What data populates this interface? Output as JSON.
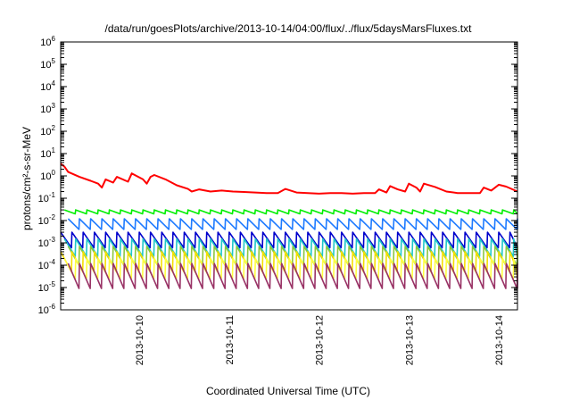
{
  "chart_data": {
    "type": "line",
    "title": "/data/run/goesPlots/archive/2013-10-14/04:00/flux/../flux/5daysMarsFluxes.txt",
    "xlabel": "Coordinated Universal Time (UTC)",
    "ylabel": "protons/cm²-s-sr-MeV",
    "y_scale": "log",
    "ylim": [
      "1e-6",
      "1e6"
    ],
    "xlim": [
      "2013-10-09T03:00",
      "2013-10-14T05:00"
    ],
    "y_tick_labels": [
      "10-6",
      "10-5",
      "10-4",
      "10-3",
      "10-2",
      "10-1",
      "100",
      "101",
      "102",
      "103",
      "104",
      "105",
      "106"
    ],
    "x_tick_labels": [
      "2013-10-10",
      "2013-10-11",
      "2013-10-12",
      "2013-10-13",
      "2013-10-14"
    ],
    "grid": false,
    "legend": "none",
    "series": [
      {
        "color": "#ff0000",
        "points": [
          [
            "2013-10-09T03:00",
            3.5
          ],
          [
            "2013-10-09T04:00",
            2.6
          ],
          [
            "2013-10-09T05:00",
            1.5
          ],
          [
            "2013-10-09T08:00",
            0.9
          ],
          [
            "2013-10-09T11:00",
            0.6
          ],
          [
            "2013-10-09T13:00",
            0.45
          ],
          [
            "2013-10-09T14:00",
            0.3
          ],
          [
            "2013-10-09T15:00",
            0.7
          ],
          [
            "2013-10-09T17:00",
            0.5
          ],
          [
            "2013-10-09T18:00",
            0.9
          ],
          [
            "2013-10-09T21:00",
            0.55
          ],
          [
            "2013-10-09T22:00",
            1.3
          ],
          [
            "2013-10-10T01:00",
            0.7
          ],
          [
            "2013-10-10T02:00",
            0.45
          ],
          [
            "2013-10-10T03:00",
            0.9
          ],
          [
            "2013-10-10T04:00",
            1.1
          ],
          [
            "2013-10-10T07:00",
            0.7
          ],
          [
            "2013-10-10T10:00",
            0.38
          ],
          [
            "2013-10-10T13:00",
            0.26
          ],
          [
            "2013-10-10T14:00",
            0.2
          ],
          [
            "2013-10-10T16:00",
            0.25
          ],
          [
            "2013-10-10T19:00",
            0.2
          ],
          [
            "2013-10-10T22:00",
            0.22
          ],
          [
            "2013-10-11T01:00",
            0.2
          ],
          [
            "2013-10-11T04:00",
            0.19
          ],
          [
            "2013-10-11T07:00",
            0.18
          ],
          [
            "2013-10-11T10:00",
            0.17
          ],
          [
            "2013-10-11T13:00",
            0.17
          ],
          [
            "2013-10-11T15:00",
            0.26
          ],
          [
            "2013-10-11T18:00",
            0.18
          ],
          [
            "2013-10-11T21:00",
            0.17
          ],
          [
            "2013-10-12T00:00",
            0.16
          ],
          [
            "2013-10-12T03:00",
            0.17
          ],
          [
            "2013-10-12T06:00",
            0.17
          ],
          [
            "2013-10-12T09:00",
            0.16
          ],
          [
            "2013-10-12T12:00",
            0.17
          ],
          [
            "2013-10-12T15:00",
            0.17
          ],
          [
            "2013-10-12T16:00",
            0.25
          ],
          [
            "2013-10-12T18:00",
            0.18
          ],
          [
            "2013-10-12T19:00",
            0.35
          ],
          [
            "2013-10-12T21:00",
            0.25
          ],
          [
            "2013-10-12T23:00",
            0.2
          ],
          [
            "2013-10-13T00:00",
            0.45
          ],
          [
            "2013-10-13T02:00",
            0.3
          ],
          [
            "2013-10-13T03:00",
            0.2
          ],
          [
            "2013-10-13T04:00",
            0.45
          ],
          [
            "2013-10-13T07:00",
            0.32
          ],
          [
            "2013-10-13T10:00",
            0.2
          ],
          [
            "2013-10-13T13:00",
            0.17
          ],
          [
            "2013-10-13T16:00",
            0.17
          ],
          [
            "2013-10-13T19:00",
            0.17
          ],
          [
            "2013-10-13T20:00",
            0.3
          ],
          [
            "2013-10-13T22:00",
            0.22
          ],
          [
            "2013-10-14T00:00",
            0.4
          ],
          [
            "2013-10-14T02:00",
            0.33
          ],
          [
            "2013-10-14T05:00",
            0.2
          ]
        ]
      },
      {
        "color": "#00ee00",
        "pattern": "sawtooth",
        "high": 0.03,
        "low": 0.02
      },
      {
        "color": "#1f7bff",
        "pattern": "sawtooth",
        "high": 0.012,
        "low": 0.004
      },
      {
        "color": "#0000cc",
        "pattern": "sawtooth",
        "high": 0.003,
        "low": 0.0006
      },
      {
        "color": "#20c8c8",
        "pattern": "sawtooth",
        "high": 0.0015,
        "low": 0.00025
      },
      {
        "color": "#8dc63f",
        "pattern": "sawtooth",
        "high": 0.0007,
        "low": 0.0001
      },
      {
        "color": "#f5e000",
        "pattern": "sawtooth",
        "high": 0.0004,
        "low": 5e-05
      },
      {
        "color": "#ffff40",
        "pattern": "sawtooth",
        "high": 0.0002,
        "low": 2.5e-05
      },
      {
        "color": "#993366",
        "pattern": "sawtooth",
        "high": 0.00012,
        "low": 9e-06
      }
    ]
  }
}
